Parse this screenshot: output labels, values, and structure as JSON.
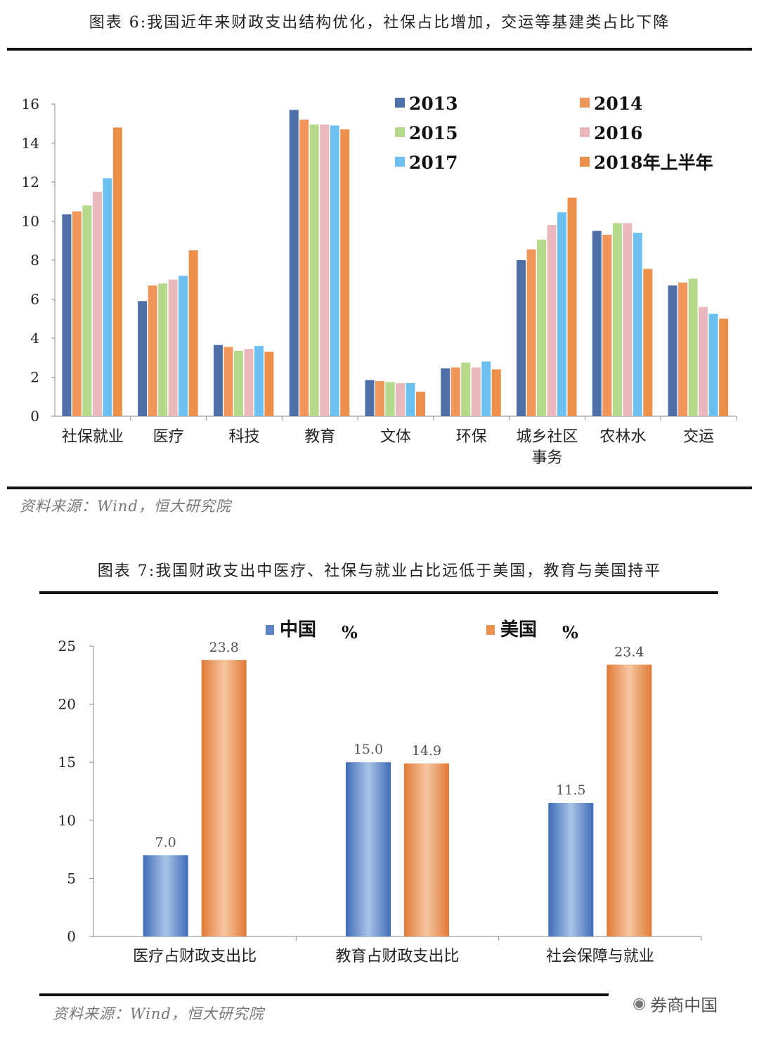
{
  "watermark": "券商中国",
  "figures": [
    {
      "title": "图表 6:我国近年来财政支出结构优化，社保占比增加，交运等基建类占比下降",
      "source": "资料来源：Wind，恒大研究院"
    },
    {
      "title": "图表 7:我国财政支出中医疗、社保与就业占比远低于美国，教育与美国持平",
      "source": "资料来源：Wind，恒大研究院"
    }
  ],
  "chart_data": [
    {
      "type": "bar",
      "categories": [
        "社保就业",
        "医疗",
        "科技",
        "教育",
        "文体",
        "环保",
        "城乡社区事务",
        "农林水",
        "交运"
      ],
      "ylim": [
        0,
        16
      ],
      "yticks": [
        0,
        2,
        4,
        6,
        8,
        10,
        12,
        14,
        16
      ],
      "legend_placement": "top-right",
      "grid": false,
      "series": [
        {
          "name": "2013",
          "color": "#4f6fa8",
          "values": [
            10.35,
            5.9,
            3.65,
            15.7,
            1.85,
            2.45,
            8.0,
            9.5,
            6.7
          ]
        },
        {
          "name": "2014",
          "color": "#f0965a",
          "values": [
            10.5,
            6.7,
            3.55,
            15.2,
            1.8,
            2.5,
            8.55,
            9.3,
            6.85
          ]
        },
        {
          "name": "2015",
          "color": "#b5d88a",
          "values": [
            10.8,
            6.8,
            3.35,
            14.95,
            1.75,
            2.75,
            9.05,
            9.9,
            7.05
          ]
        },
        {
          "name": "2016",
          "color": "#e8b8bd",
          "values": [
            11.5,
            7.0,
            3.45,
            14.95,
            1.7,
            2.5,
            9.8,
            9.9,
            5.6
          ]
        },
        {
          "name": "2017",
          "color": "#6cc0f0",
          "values": [
            12.2,
            7.2,
            3.6,
            14.9,
            1.7,
            2.8,
            10.45,
            9.4,
            5.25
          ]
        },
        {
          "name": "2018年上半年",
          "color": "#ec8f4a",
          "values": [
            14.8,
            8.5,
            3.3,
            14.7,
            1.25,
            2.4,
            11.2,
            7.55,
            5.0
          ]
        }
      ]
    },
    {
      "type": "bar",
      "categories": [
        "医疗占财政支出比",
        "教育占财政支出比",
        "社会保障与就业"
      ],
      "ylim": [
        0,
        25
      ],
      "yticks": [
        0,
        5,
        10,
        15,
        20,
        25
      ],
      "legend_placement": "top",
      "grid": false,
      "series": [
        {
          "name": "中国",
          "unit": "%",
          "color": "#5a86c8",
          "values": [
            7.0,
            15.0,
            11.5
          ],
          "labels": [
            "7.0",
            "15.0",
            "11.5"
          ]
        },
        {
          "name": "美国",
          "unit": "%",
          "color": "#ec8f4a",
          "values": [
            23.8,
            14.9,
            23.4
          ],
          "labels": [
            "23.8",
            "14.9",
            "23.4"
          ]
        }
      ]
    }
  ]
}
